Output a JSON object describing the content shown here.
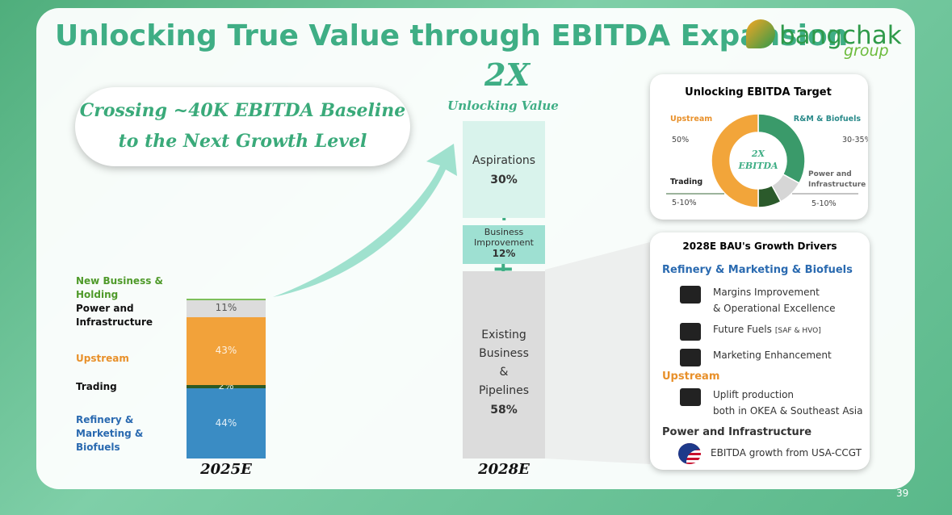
{
  "header": {
    "title": "Unlocking True Value through EBITDA Expansion",
    "logo": "bangchak",
    "logo_sub": "group"
  },
  "callout": {
    "line1": "Crossing ~40K EBITDA Baseline",
    "line2": "to the Next Growth Level"
  },
  "chart_data": [
    {
      "type": "stacked-bar",
      "categories": [
        "2025E"
      ],
      "ylim": [
        0,
        100
      ],
      "series": [
        {
          "name": "Refinery & Marketing & Biofuels",
          "color": "#3a8cc4",
          "values": [
            44
          ],
          "value_labels": [
            "44%"
          ]
        },
        {
          "name": "Trading",
          "color": "#2e5a22",
          "values": [
            2
          ],
          "value_labels": [
            "2%"
          ]
        },
        {
          "name": "Upstream",
          "color": "#f2a23a",
          "values": [
            43
          ],
          "value_labels": [
            "43%"
          ]
        },
        {
          "name": "Power and Infrastructure",
          "color": "#dcdcdc",
          "values": [
            11
          ],
          "value_labels": [
            "11%"
          ]
        },
        {
          "name": "New Business & Holding",
          "color": "#7dbf5a",
          "values": [
            0.5
          ],
          "value_labels": [
            null
          ]
        }
      ]
    },
    {
      "type": "stacked-bar",
      "title": "2X",
      "subtitle": "Unlocking Value",
      "categories": [
        "2028E"
      ],
      "ylim": [
        0,
        100
      ],
      "series": [
        {
          "name": "Existing Business & Pipelines",
          "color": "#dcdcdc",
          "values": [
            58
          ],
          "value_labels": [
            "58%"
          ]
        },
        {
          "name": "Business Improvement",
          "color": "#9ee0d2",
          "values": [
            12
          ],
          "value_labels": [
            "12%"
          ]
        },
        {
          "name": "Aspirations",
          "color": "#d9f3ec",
          "values": [
            30
          ],
          "value_labels": [
            "30%"
          ]
        }
      ]
    },
    {
      "type": "pie",
      "title": "Unlocking EBITDA Target",
      "center_label": "2X EBITDA",
      "categories": [
        "R&M & Biofuels",
        "Power and Infrastructure",
        "Trading",
        "Upstream"
      ],
      "values": [
        33,
        9,
        8,
        50
      ],
      "value_labels": [
        "30-35%",
        "5-10%",
        "5-10%",
        "50%"
      ],
      "colors": [
        "#3a9a6a",
        "#d6d6d6",
        "#2b5a2b",
        "#f2a53a"
      ]
    }
  ],
  "drivers": {
    "title": "2028E BAU's Growth Drivers",
    "sections": [
      {
        "heading": "Refinery & Marketing & Biofuels",
        "items": [
          {
            "lines": [
              "Margins Improvement",
              "& Operational Excellence"
            ]
          },
          {
            "lines": [
              "Future Fuels"
            ],
            "note": "[SAF & HVO]"
          },
          {
            "lines": [
              "Marketing Enhancement"
            ]
          }
        ]
      },
      {
        "heading": "Upstream",
        "items": [
          {
            "lines": [
              "Uplift production",
              "both in OKEA & Southeast Asia"
            ]
          }
        ]
      },
      {
        "heading": "Power and Infrastructure",
        "items": [
          {
            "lines": [
              "EBITDA growth from USA-CCGT"
            ]
          }
        ]
      }
    ]
  },
  "page_number": "39"
}
